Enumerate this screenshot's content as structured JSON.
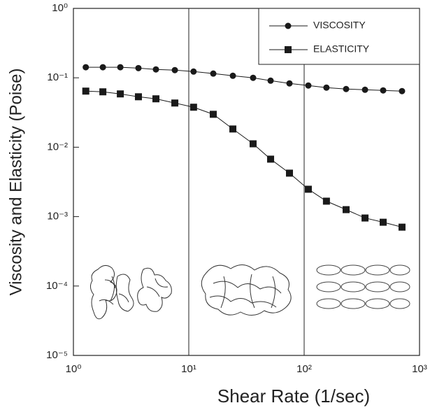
{
  "chart_data": {
    "type": "line",
    "x_label": "Shear Rate (1/sec)",
    "y_label": "Viscosity and Elasticity (Poise)",
    "x": [
      1.28,
      1.8,
      2.55,
      3.66,
      5.19,
      7.57,
      11.0,
      16.3,
      24.1,
      36.1,
      51.2,
      74.6,
      108.7,
      156,
      231,
      337,
      484,
      705
    ],
    "series": [
      {
        "name": "VISCOSITY",
        "color": "#1a1a1a",
        "marker": "circle",
        "values": [
          0.142,
          0.142,
          0.142,
          0.138,
          0.132,
          0.129,
          0.123,
          0.115,
          0.107,
          0.1,
          0.091,
          0.083,
          0.0774,
          0.0722,
          0.0689,
          0.0673,
          0.0658,
          0.0643
        ]
      },
      {
        "name": "ELASTICITY",
        "color": "#1a1a1a",
        "marker": "square",
        "values": [
          0.0643,
          0.0628,
          0.0586,
          0.0533,
          0.0498,
          0.0433,
          0.0377,
          0.0298,
          0.0183,
          0.0112,
          0.00673,
          0.00423,
          0.00248,
          0.00167,
          0.00126,
          0.000955,
          0.00083,
          0.000705
        ]
      }
    ],
    "xlog": true,
    "ylog": true,
    "xlim": [
      1,
      1000
    ],
    "ylim": [
      1e-05,
      1
    ],
    "xticks": [
      {
        "value": 1,
        "label": "10⁰"
      },
      {
        "value": 10,
        "label": "10¹"
      },
      {
        "value": 100,
        "label": "10²"
      },
      {
        "value": 1000,
        "label": "10³"
      }
    ],
    "yticks": [
      {
        "value": 1e-05,
        "label": "10⁻⁵"
      },
      {
        "value": 0.0001,
        "label": "10⁻⁴"
      },
      {
        "value": 0.001,
        "label": "10⁻³"
      },
      {
        "value": 0.01,
        "label": "10⁻²"
      },
      {
        "value": 0.1,
        "label": "10⁻¹"
      },
      {
        "value": 1,
        "label": "10⁰"
      }
    ],
    "xgrid": true,
    "legend": "upper right"
  }
}
